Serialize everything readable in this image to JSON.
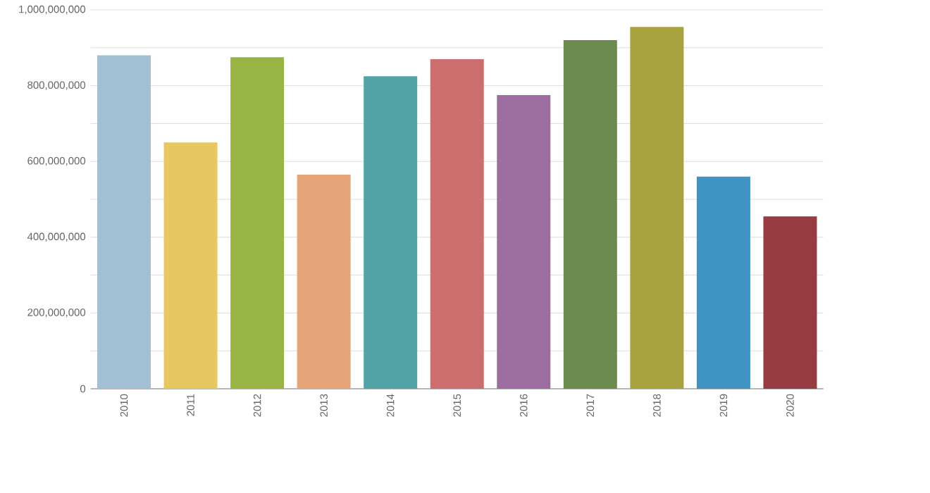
{
  "chart_data": {
    "type": "bar",
    "categories": [
      "2010",
      "2011",
      "2012",
      "2013",
      "2014",
      "2015",
      "2016",
      "2017",
      "2018",
      "2019",
      "2020"
    ],
    "values": [
      880000000,
      650000000,
      875000000,
      565000000,
      825000000,
      870000000,
      775000000,
      920000000,
      955000000,
      560000000,
      455000000
    ],
    "colors": [
      "#a3bfd3",
      "#e6c760",
      "#98b444",
      "#e6a47a",
      "#52a3a6",
      "#cc6e6e",
      "#9c6ea0",
      "#6b8a4e",
      "#a8a23e",
      "#3f94c4",
      "#973d41"
    ],
    "ylim": [
      0,
      1000000000
    ],
    "yticks": [
      {
        "value": 0,
        "label": "0"
      },
      {
        "value": 100000000,
        "label": null
      },
      {
        "value": 200000000,
        "label": "200,000,000"
      },
      {
        "value": 300000000,
        "label": null
      },
      {
        "value": 400000000,
        "label": "400,000,000"
      },
      {
        "value": 500000000,
        "label": null
      },
      {
        "value": 600000000,
        "label": "600,000,000"
      },
      {
        "value": 700000000,
        "label": null
      },
      {
        "value": 800000000,
        "label": "800,000,000"
      },
      {
        "value": 900000000,
        "label": null
      },
      {
        "value": 1000000000,
        "label": "1,000,000,000"
      }
    ],
    "grid": "y"
  }
}
